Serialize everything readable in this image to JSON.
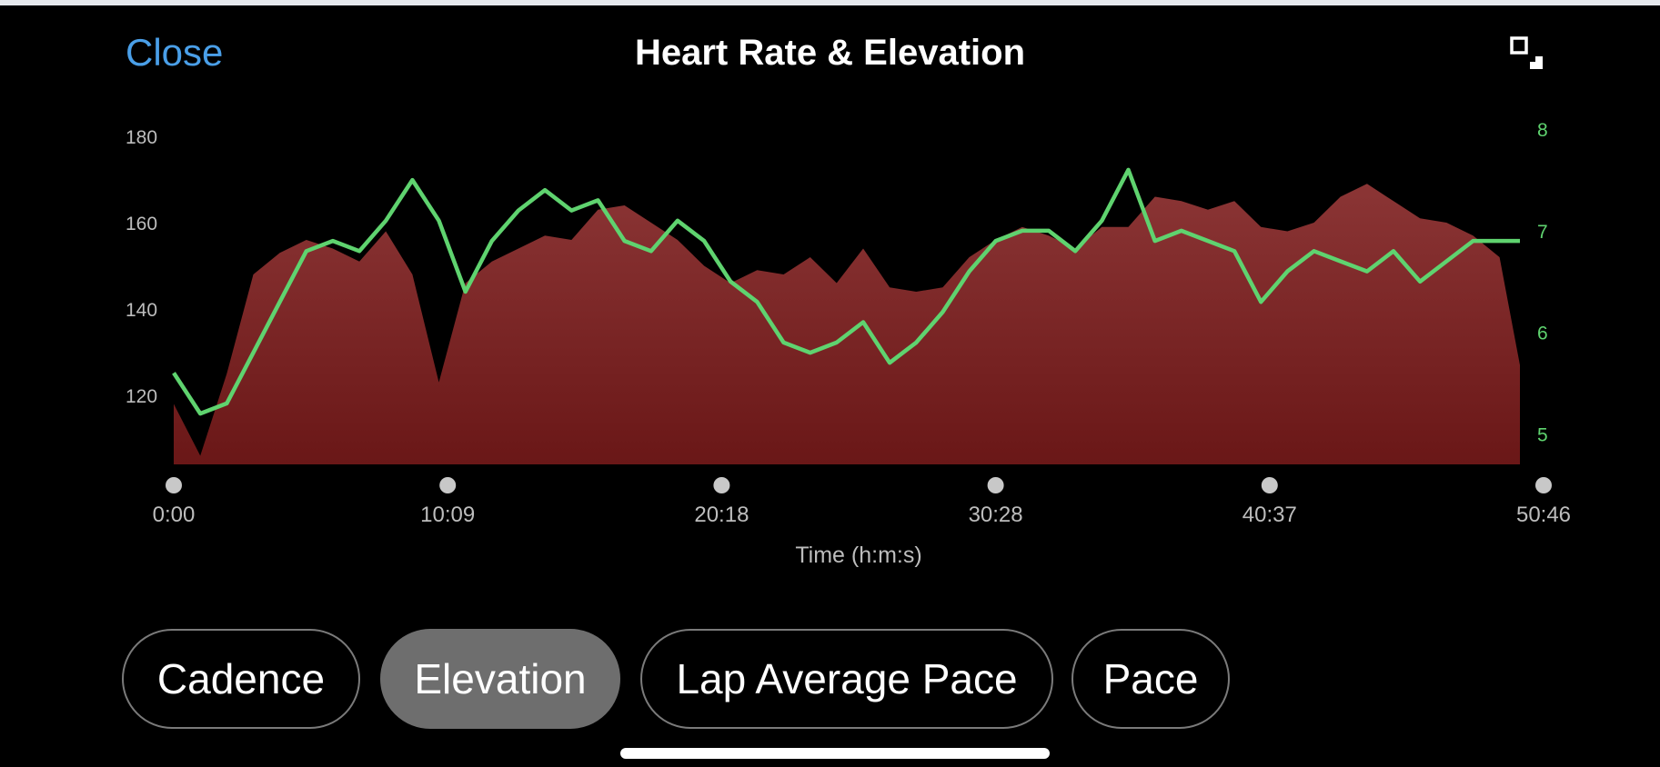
{
  "header": {
    "close_label": "Close",
    "title": "Heart Rate & Elevation"
  },
  "colors": {
    "background": "#000000",
    "accent_link": "#4a9fe8",
    "heart_rate_line": "#5fd36f",
    "elevation_fill_top": "#8b3535",
    "elevation_fill_bottom": "#6a1717",
    "axis_text": "#bdbdbd",
    "tab_active": "#6e6e6e"
  },
  "tabs": [
    {
      "label": "Cadence",
      "active": false
    },
    {
      "label": "Elevation",
      "active": true
    },
    {
      "label": "Lap Average Pace",
      "active": false
    },
    {
      "label": "Pace",
      "active": false
    }
  ],
  "chart_data": {
    "type": "area",
    "xlabel": "Time (h:m:s)",
    "x_ticks": [
      "0:00",
      "10:09",
      "20:18",
      "30:28",
      "40:37",
      "50:46"
    ],
    "x_range_seconds": [
      0,
      3046
    ],
    "left_axis": {
      "ticks": [
        120,
        140,
        160,
        180
      ],
      "range": [
        104,
        184
      ]
    },
    "right_axis": {
      "ticks": [
        5,
        6,
        7,
        8
      ],
      "range": [
        4.7,
        8.1
      ]
    },
    "grid": false,
    "series": [
      {
        "axis": "left",
        "style": "filled area",
        "x_seconds": [
          0,
          60,
          120,
          180,
          240,
          300,
          360,
          420,
          480,
          540,
          600,
          660,
          720,
          780,
          840,
          900,
          960,
          1020,
          1080,
          1140,
          1200,
          1260,
          1320,
          1380,
          1440,
          1500,
          1560,
          1620,
          1680,
          1740,
          1800,
          1860,
          1920,
          1980,
          2040,
          2100,
          2160,
          2220,
          2280,
          2340,
          2400,
          2460,
          2520,
          2580,
          2640,
          2700,
          2760,
          2820,
          2880,
          2940,
          3000,
          3046
        ],
        "values": [
          118,
          106,
          125,
          148,
          153,
          156,
          154,
          151,
          158,
          148,
          123,
          146,
          151,
          154,
          157,
          156,
          163,
          164,
          160,
          156,
          150,
          146,
          149,
          148,
          152,
          146,
          154,
          145,
          144,
          145,
          152,
          156,
          159,
          157,
          154,
          159,
          159,
          166,
          165,
          163,
          165,
          159,
          158,
          160,
          166,
          169,
          165,
          161,
          160,
          157,
          152,
          127
        ]
      },
      {
        "axis": "right",
        "style": "line",
        "x_seconds": [
          0,
          60,
          120,
          180,
          240,
          300,
          360,
          420,
          480,
          540,
          600,
          660,
          720,
          780,
          840,
          900,
          960,
          1020,
          1080,
          1140,
          1200,
          1260,
          1320,
          1380,
          1440,
          1500,
          1560,
          1620,
          1680,
          1740,
          1800,
          1860,
          1920,
          1980,
          2040,
          2100,
          2160,
          2220,
          2280,
          2340,
          2400,
          2460,
          2520,
          2580,
          2640,
          2700,
          2760,
          2820,
          2880,
          2940,
          3000,
          3046
        ],
        "values": [
          5.6,
          5.2,
          5.3,
          5.8,
          6.3,
          6.8,
          6.9,
          6.8,
          7.1,
          7.5,
          7.1,
          6.4,
          6.9,
          7.2,
          7.4,
          7.2,
          7.3,
          6.9,
          6.8,
          7.1,
          6.9,
          6.5,
          6.3,
          5.9,
          5.8,
          5.9,
          6.1,
          5.7,
          5.9,
          6.2,
          6.6,
          6.9,
          7.0,
          7.0,
          6.8,
          7.1,
          7.6,
          6.9,
          7.0,
          6.9,
          6.8,
          6.3,
          6.6,
          6.8,
          6.7,
          6.6,
          6.8,
          6.5,
          6.7,
          6.9,
          6.9,
          6.9
        ]
      }
    ]
  }
}
